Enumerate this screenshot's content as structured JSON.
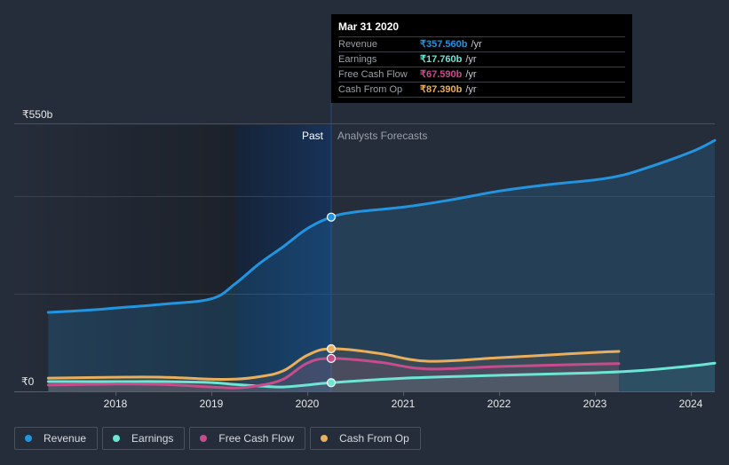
{
  "tooltip": {
    "date": "Mar 31 2020",
    "rows": [
      {
        "label": "Revenue",
        "value": "₹357.560b",
        "unit": "/yr",
        "color": "#2394DF"
      },
      {
        "label": "Earnings",
        "value": "₹17.760b",
        "unit": "/yr",
        "color": "#6CE5D4"
      },
      {
        "label": "Free Cash Flow",
        "value": "₹67.590b",
        "unit": "/yr",
        "color": "#C54D8D"
      },
      {
        "label": "Cash From Op",
        "value": "₹87.390b",
        "unit": "/yr",
        "color": "#E9AF5C"
      }
    ]
  },
  "legend": [
    {
      "label": "Revenue",
      "color": "#2394DF"
    },
    {
      "label": "Earnings",
      "color": "#6CE5D4"
    },
    {
      "label": "Free Cash Flow",
      "color": "#C54D8D"
    },
    {
      "label": "Cash From Op",
      "color": "#E9AF5C"
    }
  ],
  "chart_data": {
    "type": "line",
    "title": "",
    "xlabel": "",
    "ylabel": "",
    "y_unit": "₹ billions",
    "ylim": [
      0,
      550
    ],
    "xlim": [
      2017.25,
      2024.25
    ],
    "y_tick_labels": [
      {
        "value": 550,
        "label": "₹550b"
      },
      {
        "value": 0,
        "label": "₹0"
      }
    ],
    "gridlines_at": [
      200,
      400,
      550
    ],
    "x_ticks": [
      2018,
      2019,
      2020,
      2021,
      2022,
      2023,
      2024
    ],
    "x_tick_labels": [
      "2018",
      "2019",
      "2020",
      "2021",
      "2022",
      "2023",
      "2024"
    ],
    "past_label": "Past",
    "forecast_label": "Analysts Forecasts",
    "past_region": [
      2019.25,
      2020.25
    ],
    "highlight_x": 2020.25,
    "series": [
      {
        "name": "Revenue",
        "color": "#2394DF",
        "x": [
          2017.3,
          2017.75,
          2018,
          2018.5,
          2019,
          2019.25,
          2019.5,
          2019.75,
          2020,
          2020.25,
          2020.5,
          2021,
          2021.5,
          2022,
          2022.5,
          2023,
          2023.25,
          2023.5,
          2024,
          2024.25
        ],
        "values": [
          162,
          167,
          171,
          179,
          190,
          221,
          262,
          297,
          334,
          357.56,
          368,
          378,
          393,
          411,
          424,
          434,
          442,
          456,
          491,
          515
        ]
      },
      {
        "name": "Earnings",
        "color": "#6CE5D4",
        "x": [
          2017.3,
          2018,
          2018.5,
          2019,
          2019.25,
          2019.5,
          2019.75,
          2020,
          2020.25,
          2021,
          2022,
          2023,
          2023.5,
          2024,
          2024.25
        ],
        "values": [
          20,
          20,
          20,
          18,
          14,
          11,
          9,
          13,
          17.76,
          27,
          33,
          38,
          43,
          52,
          58
        ]
      },
      {
        "name": "Free Cash Flow",
        "color": "#C54D8D",
        "x": [
          2017.3,
          2018,
          2018.5,
          2019,
          2019.25,
          2019.5,
          2019.75,
          2020,
          2020.25,
          2020.75,
          2021.25,
          2022,
          2023,
          2023.25
        ],
        "values": [
          13,
          15,
          14,
          9,
          7,
          12,
          25,
          58,
          67.59,
          60,
          46,
          51,
          56,
          57
        ]
      },
      {
        "name": "Cash From Op",
        "color": "#E9AF5C",
        "x": [
          2017.3,
          2018,
          2018.5,
          2019,
          2019.25,
          2019.5,
          2019.75,
          2020,
          2020.25,
          2020.75,
          2021.25,
          2022,
          2023,
          2023.25
        ],
        "values": [
          27,
          29,
          29,
          25,
          25,
          30,
          42,
          74,
          87.39,
          78,
          62,
          69,
          80,
          82
        ]
      }
    ]
  }
}
